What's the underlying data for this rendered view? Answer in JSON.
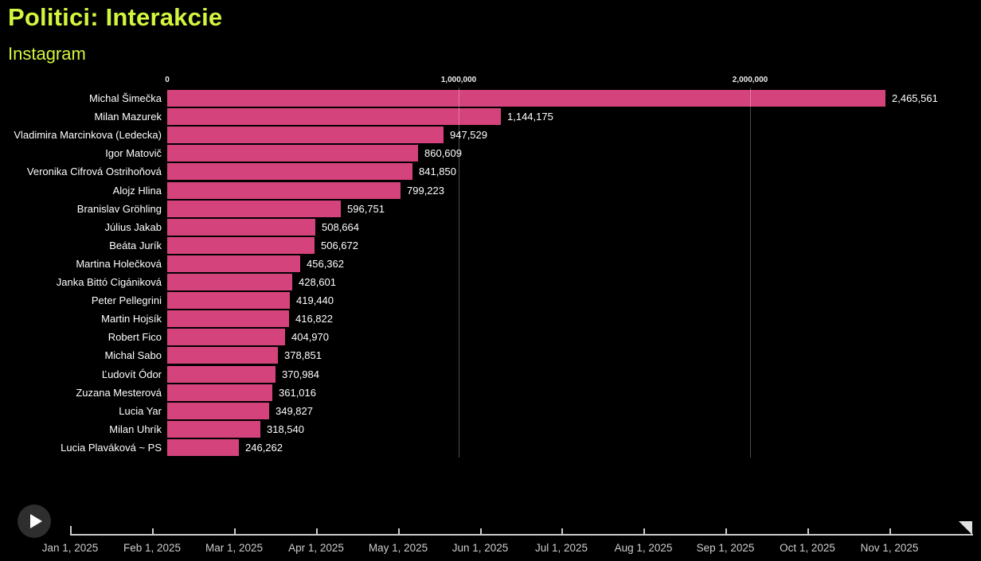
{
  "header": {
    "title": "Politici: Interakcie",
    "subtitle": "Instagram"
  },
  "colors": {
    "background": "#000000",
    "accent": "#d2f53e",
    "bar": "#d5437c",
    "text": "#ffffff",
    "axis_text": "#ededed",
    "timeline": "#cccccc",
    "gridline": "#4d4d4d",
    "play_button_bg": "#2e2e2e"
  },
  "chart_data": {
    "type": "bar",
    "orientation": "horizontal",
    "title": "Politici: Interakcie",
    "subtitle": "Instagram",
    "xlabel": "",
    "ylabel": "",
    "xlim": [
      0,
      2790000
    ],
    "grid": true,
    "x_axis_ticks": [
      {
        "value": 0,
        "label": "0"
      },
      {
        "value": 1000000,
        "label": "1,000,000"
      },
      {
        "value": 2000000,
        "label": "2,000,000"
      }
    ],
    "categories": [
      "Michal Šimečka",
      "Milan Mazurek",
      "Vladimira Marcinkova (Ledecka)",
      "Igor Matovič",
      "Veronika Cifrová Ostrihoňová",
      "Alojz Hlina",
      "Branislav Gröhling",
      "Július Jakab",
      "Beáta Jurík",
      "Martina Holečková",
      "Janka Bittó Cigániková",
      "Peter Pellegrini",
      "Martin Hojsík",
      "Robert Fico",
      "Michal Sabo",
      "Ľudovít Ódor",
      "Zuzana Mesterová",
      "Lucia Yar",
      "Milan Uhrík",
      "Lucia Plaváková ~ PS"
    ],
    "values": [
      2465561,
      1144175,
      947529,
      860609,
      841850,
      799223,
      596751,
      508664,
      506672,
      456362,
      428601,
      419440,
      416822,
      404970,
      378851,
      370984,
      361016,
      349827,
      318540,
      246262
    ],
    "value_labels": [
      "2,465,561",
      "1,144,175",
      "947,529",
      "860,609",
      "841,850",
      "799,223",
      "596,751",
      "508,664",
      "506,672",
      "456,362",
      "428,601",
      "419,440",
      "416,822",
      "404,970",
      "378,851",
      "370,984",
      "361,016",
      "349,827",
      "318,540",
      "246,262"
    ]
  },
  "timeline": {
    "labels": [
      "Jan 1, 2025",
      "Feb 1, 2025",
      "Mar 1, 2025",
      "Apr 1, 2025",
      "May 1, 2025",
      "Jun 1, 2025",
      "Jul 1, 2025",
      "Aug 1, 2025",
      "Sep 1, 2025",
      "Oct 1, 2025",
      "Nov 1, 2025"
    ],
    "play_label": "play"
  }
}
